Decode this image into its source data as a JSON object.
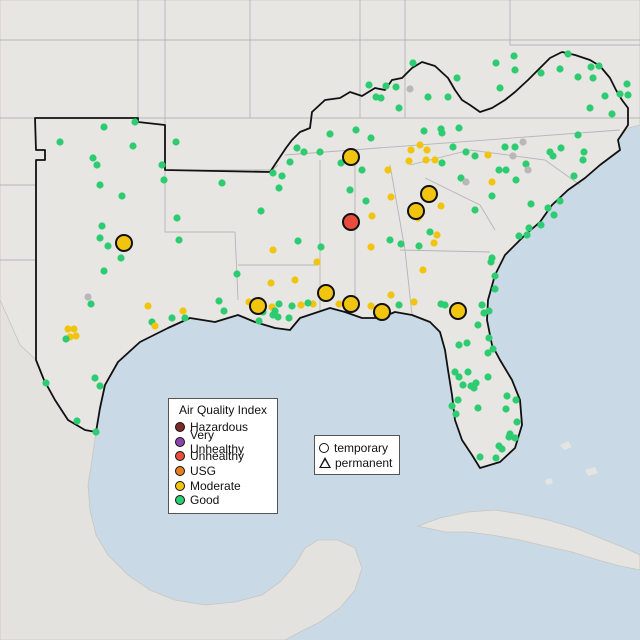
{
  "legend": {
    "title": "Air Quality Index",
    "categories": [
      {
        "label": "Hazardous",
        "color": "#7e2a2a"
      },
      {
        "label": "Very Unhealthy",
        "color": "#8e44ad"
      },
      {
        "label": "Unhealthy",
        "color": "#e74c3c"
      },
      {
        "label": "USG",
        "color": "#e67e22"
      },
      {
        "label": "Moderate",
        "color": "#f1c40f"
      },
      {
        "label": "Good",
        "color": "#2ecc71"
      }
    ]
  },
  "monitor_types": {
    "temporary": "temporary",
    "permanent": "permanent"
  },
  "colors": {
    "water": "#c9d9e6",
    "land": "#ecebe8",
    "highlight_land": "#f1f0ee",
    "border_outline": "#111111",
    "state_lines": "#b0b0b0",
    "inactive": "#b8b8b8"
  }
}
